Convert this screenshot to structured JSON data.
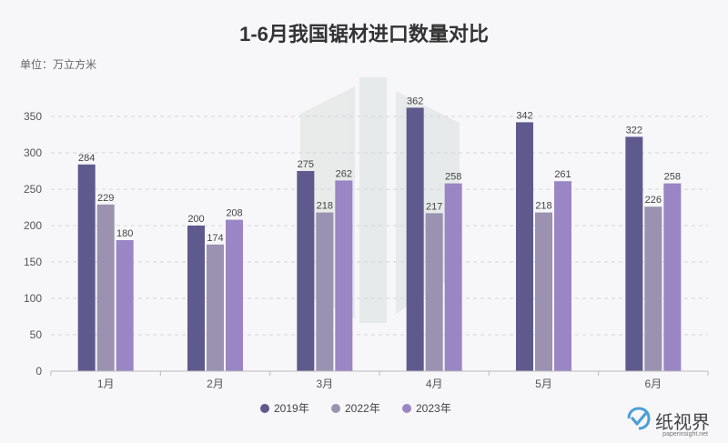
{
  "chart_data": {
    "type": "bar",
    "title": "1-6月我国锯材进口数量对比",
    "unit_label": "单位：万立方米",
    "categories": [
      "1月",
      "2月",
      "3月",
      "4月",
      "5月",
      "6月"
    ],
    "series": [
      {
        "name": "2019年",
        "color": "#5e5a8e",
        "values": [
          284,
          200,
          275,
          362,
          342,
          322
        ]
      },
      {
        "name": "2022年",
        "color": "#9a92b0",
        "values": [
          229,
          174,
          218,
          217,
          218,
          226
        ]
      },
      {
        "name": "2023年",
        "color": "#9a86c4",
        "values": [
          180,
          208,
          262,
          258,
          261,
          258
        ]
      }
    ],
    "ylim": [
      0,
      350
    ],
    "yticks": [
      0,
      50,
      100,
      150,
      200,
      250,
      300,
      350
    ],
    "grid": true,
    "legend_position": "bottom"
  },
  "brand": {
    "name": "纸视界",
    "url": "paperinsight.net",
    "icon": "checkmark-icon"
  }
}
